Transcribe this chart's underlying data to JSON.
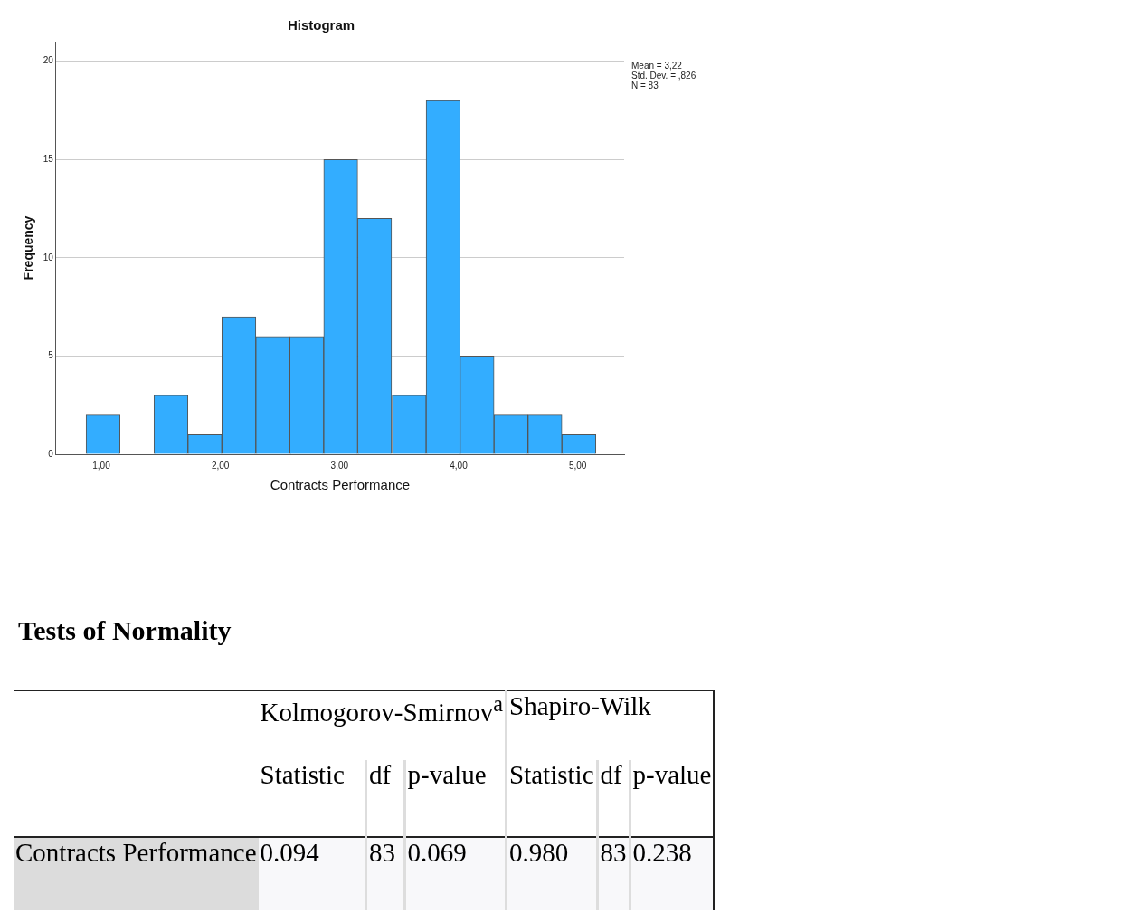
{
  "chart_data": [
    {
      "type": "histogram",
      "title": "Histogram",
      "xlabel": "Contracts Performance",
      "ylabel": "Frequency",
      "bins": [
        0.87,
        1.16,
        1.44,
        1.73,
        2.01,
        2.3,
        2.58,
        2.87,
        3.15,
        3.44,
        3.73,
        4.01,
        4.3,
        4.58,
        4.87,
        5.15
      ],
      "values": [
        2,
        0,
        3,
        1,
        7,
        6,
        6,
        15,
        12,
        3,
        18,
        5,
        2,
        2,
        1
      ],
      "color": "#33adff",
      "xlim": [
        0.62,
        5.39
      ],
      "xticks": [
        {
          "value": 1,
          "label": "1,00"
        },
        {
          "value": 2,
          "label": "2,00"
        },
        {
          "value": 3,
          "label": "3,00"
        },
        {
          "value": 4,
          "label": "4,00"
        },
        {
          "value": 5,
          "label": "5,00"
        }
      ],
      "ylim": [
        0,
        21
      ],
      "yticks": [
        0,
        5,
        10,
        15,
        20
      ],
      "grid": "y",
      "annotations": [
        "Mean = 3,22",
        "Std. Dev. = ,826",
        "N = 83"
      ]
    },
    {
      "type": "other",
      "title": "Tests of Normality",
      "annotations": [
        "Kolmogorov-Smirnov$^{a}$",
        "Shapiro-Wilk",
        "Statistic",
        "df",
        "p-value",
        "Statistic",
        "df",
        "p-value",
        "Contracts Performance",
        "0.094",
        "83",
        "0.069",
        "0.980",
        "83",
        "0.238"
      ]
    }
  ]
}
